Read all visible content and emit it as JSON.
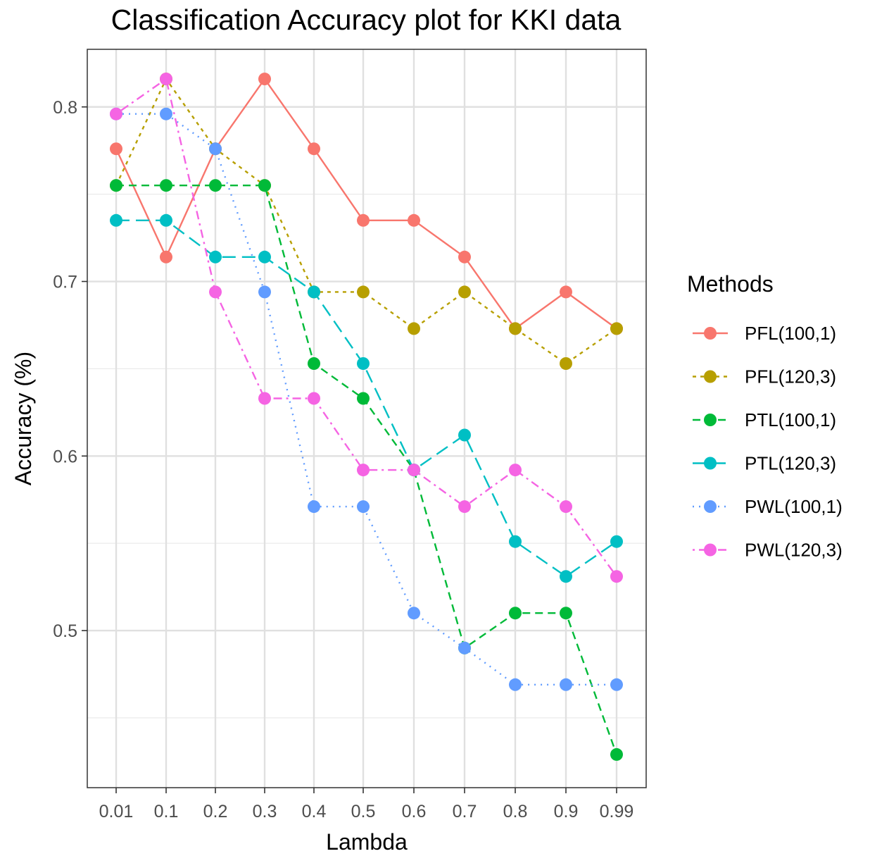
{
  "chart_data": {
    "type": "line",
    "title": "Classification Accuracy plot for KKI data",
    "xlabel": "Lambda",
    "ylabel": "Accuracy (%)",
    "categories": [
      "0.01",
      "0.1",
      "0.2",
      "0.3",
      "0.4",
      "0.5",
      "0.6",
      "0.7",
      "0.8",
      "0.9",
      "0.99"
    ],
    "ylim": [
      0.41,
      0.833
    ],
    "yticks": [
      0.5,
      0.6,
      0.7,
      0.8
    ],
    "ytick_labels": [
      "0.5",
      "0.6",
      "0.7",
      "0.8"
    ],
    "grid": true,
    "legend": {
      "title": "Methods",
      "position": "right"
    },
    "series": [
      {
        "name": "PFL(100,1)",
        "color": "#F8766D",
        "dash": "solid",
        "values": [
          0.776,
          0.714,
          0.776,
          0.816,
          0.776,
          0.735,
          0.735,
          0.714,
          0.673,
          0.694,
          0.673
        ]
      },
      {
        "name": "PFL(120,3)",
        "color": "#B79F00",
        "dash": "dotted-short",
        "values": [
          0.755,
          0.816,
          0.776,
          0.755,
          0.694,
          0.694,
          0.673,
          0.694,
          0.673,
          0.653,
          0.673
        ]
      },
      {
        "name": "PTL(100,1)",
        "color": "#00BA38",
        "dash": "dashed",
        "values": [
          0.755,
          0.755,
          0.755,
          0.755,
          0.653,
          0.633,
          0.592,
          0.49,
          0.51,
          0.51,
          0.429
        ]
      },
      {
        "name": "PTL(120,3)",
        "color": "#00BFC4",
        "dash": "longdash",
        "values": [
          0.735,
          0.735,
          0.714,
          0.714,
          0.694,
          0.653,
          0.592,
          0.612,
          0.551,
          0.531,
          0.551
        ]
      },
      {
        "name": "PWL(100,1)",
        "color": "#619CFF",
        "dash": "dotted",
        "values": [
          0.796,
          0.796,
          0.776,
          0.694,
          0.571,
          0.571,
          0.51,
          0.49,
          0.469,
          0.469,
          0.469
        ]
      },
      {
        "name": "PWL(120,3)",
        "color": "#F564E3",
        "dash": "dotdash",
        "values": [
          0.796,
          0.816,
          0.694,
          0.633,
          0.633,
          0.592,
          0.592,
          0.571,
          0.592,
          0.571,
          0.531
        ]
      }
    ]
  }
}
